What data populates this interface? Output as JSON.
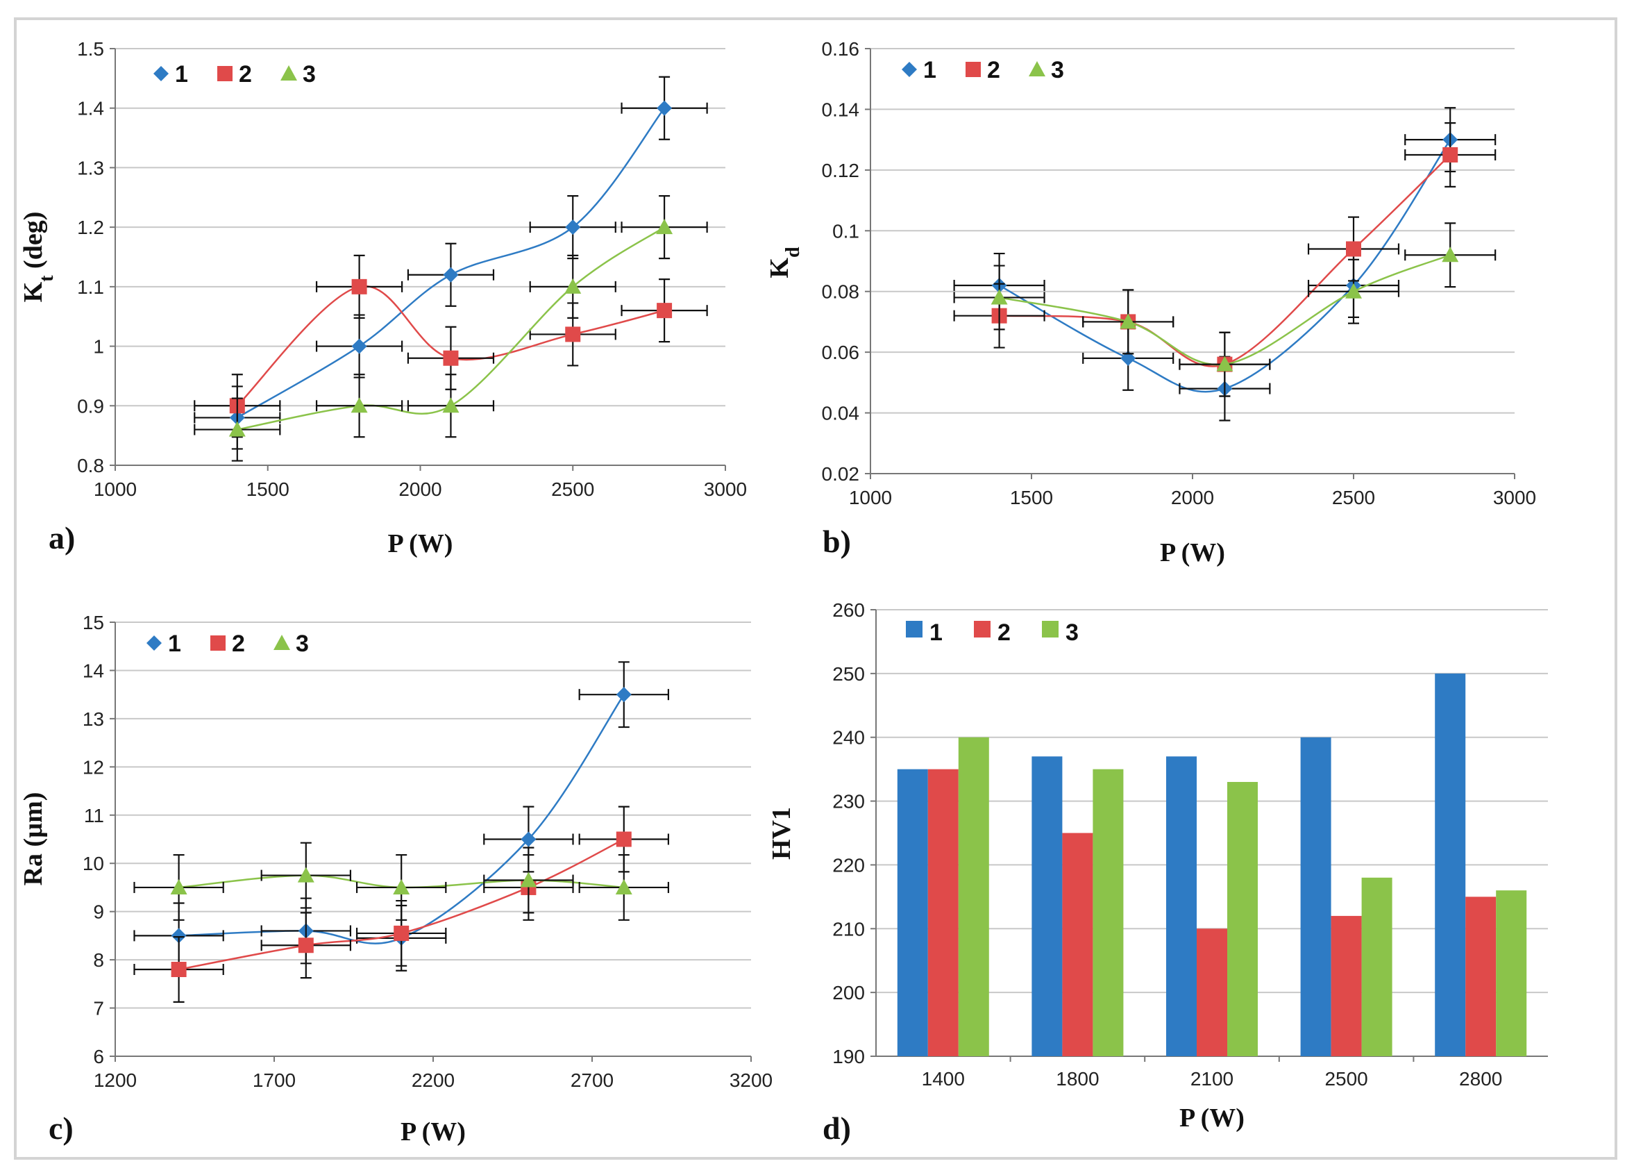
{
  "colors": {
    "s1": "#2e7bc4",
    "s2": "#e04a4a",
    "s3": "#8bc34a"
  },
  "chart_data": [
    {
      "type": "scatter",
      "panel_label": "a)",
      "xlabel": "P (W)",
      "ylabel_main": "K",
      "ylabel_sub": "t",
      "ylabel_rest": " (deg)",
      "xlim": [
        1000,
        3000
      ],
      "ylim": [
        0.8,
        1.5
      ],
      "xticks": [
        "1000",
        "1500",
        "2000",
        "2500",
        "3000"
      ],
      "yticks": [
        "0.8",
        "0.9",
        "1",
        "1.1",
        "1.2",
        "1.3",
        "1.4",
        "1.5"
      ],
      "grid": "horizontal",
      "legend": "top-left",
      "series": [
        {
          "name": "1",
          "marker": "diamond",
          "x": [
            1400,
            1800,
            2100,
            2500,
            2800
          ],
          "y": [
            0.88,
            1.0,
            1.12,
            1.2,
            1.4
          ]
        },
        {
          "name": "2",
          "marker": "square",
          "x": [
            1400,
            1800,
            2100,
            2500,
            2800
          ],
          "y": [
            0.9,
            1.1,
            0.98,
            1.02,
            1.06
          ]
        },
        {
          "name": "3",
          "marker": "triangle",
          "x": [
            1400,
            1800,
            2100,
            2500,
            2800
          ],
          "y": [
            0.86,
            0.9,
            0.9,
            1.1,
            1.2
          ]
        }
      ]
    },
    {
      "type": "scatter",
      "panel_label": "b)",
      "xlabel": "P (W)",
      "ylabel_main": "K",
      "ylabel_sub": "d",
      "ylabel_rest": "",
      "xlim": [
        1000,
        3000
      ],
      "ylim": [
        0.02,
        0.16
      ],
      "xticks": [
        "1000",
        "1500",
        "2000",
        "2500",
        "3000"
      ],
      "yticks": [
        "0.02",
        "0.04",
        "0.06",
        "0.08",
        "0.1",
        "0.12",
        "0.14",
        "0.16"
      ],
      "grid": "horizontal",
      "legend": "top-left",
      "series": [
        {
          "name": "1",
          "marker": "diamond",
          "x": [
            1400,
            1800,
            2100,
            2500,
            2800
          ],
          "y": [
            0.082,
            0.058,
            0.048,
            0.082,
            0.13
          ]
        },
        {
          "name": "2",
          "marker": "square",
          "x": [
            1400,
            1800,
            2100,
            2500,
            2800
          ],
          "y": [
            0.072,
            0.07,
            0.056,
            0.094,
            0.125
          ]
        },
        {
          "name": "3",
          "marker": "triangle",
          "x": [
            1400,
            1800,
            2100,
            2500,
            2800
          ],
          "y": [
            0.078,
            0.07,
            0.056,
            0.08,
            0.092
          ]
        }
      ]
    },
    {
      "type": "scatter",
      "panel_label": "c)",
      "xlabel": "P (W)",
      "ylabel_main": "Ra (µm)",
      "ylabel_sub": "",
      "ylabel_rest": "",
      "xlim": [
        1200,
        3200
      ],
      "ylim": [
        6,
        15
      ],
      "xticks": [
        "1200",
        "1700",
        "2200",
        "2700",
        "3200"
      ],
      "yticks": [
        "6",
        "7",
        "8",
        "9",
        "10",
        "11",
        "12",
        "13",
        "14",
        "15"
      ],
      "grid": "horizontal",
      "legend": "top-left",
      "series": [
        {
          "name": "1",
          "marker": "diamond",
          "x": [
            1400,
            1800,
            2100,
            2500,
            2800
          ],
          "y": [
            8.5,
            8.6,
            8.45,
            10.5,
            13.5
          ]
        },
        {
          "name": "2",
          "marker": "square",
          "x": [
            1400,
            1800,
            2100,
            2500,
            2800
          ],
          "y": [
            7.8,
            8.3,
            8.55,
            9.5,
            10.5
          ]
        },
        {
          "name": "3",
          "marker": "triangle",
          "x": [
            1400,
            1800,
            2100,
            2500,
            2800
          ],
          "y": [
            9.5,
            9.75,
            9.5,
            9.65,
            9.5
          ]
        }
      ]
    },
    {
      "type": "bar",
      "panel_label": "d)",
      "xlabel": "P (W)",
      "ylabel_main": "HV1",
      "ylabel_sub": "",
      "ylabel_rest": "",
      "categories": [
        "1400",
        "1800",
        "2100",
        "2500",
        "2800"
      ],
      "ylim": [
        190,
        260
      ],
      "yticks": [
        "190",
        "200",
        "210",
        "220",
        "230",
        "240",
        "250",
        "260"
      ],
      "grid": "horizontal",
      "legend": "top-left",
      "series": [
        {
          "name": "1",
          "values": [
            235,
            237,
            237,
            240,
            250
          ]
        },
        {
          "name": "2",
          "values": [
            235,
            225,
            210,
            212,
            215
          ]
        },
        {
          "name": "3",
          "values": [
            240,
            235,
            233,
            218,
            216
          ]
        }
      ]
    }
  ]
}
